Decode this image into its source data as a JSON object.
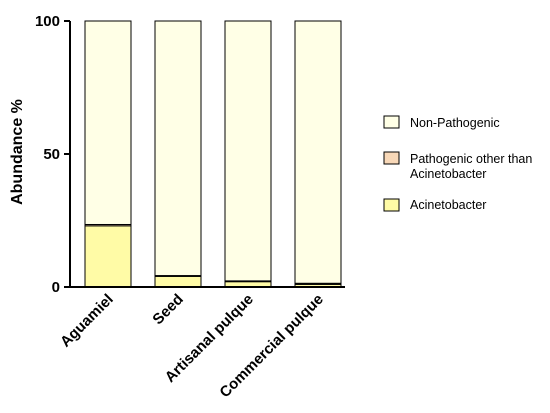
{
  "chart_data": {
    "type": "bar",
    "stacked": true,
    "categories": [
      "Aguamiel",
      "Seed",
      "Artisanal pulque",
      "Commercial pulque"
    ],
    "series": [
      {
        "name": "Acinetobacter",
        "values": [
          23,
          4,
          2,
          1
        ],
        "color": "#fffba6"
      },
      {
        "name": "Pathogenic other than Acinetobacter",
        "values": [
          0.5,
          0.3,
          0.3,
          0.4
        ],
        "color": "#f8d8b8"
      },
      {
        "name": "Non-Pathogenic",
        "values": [
          76.5,
          95.7,
          97.7,
          98.6
        ],
        "color": "#ffffe6"
      }
    ],
    "legend_order": [
      "Non-Pathogenic",
      "Pathogenic other than Acinetobacter",
      "Acinetobacter"
    ],
    "legend_text": {
      "non_pathogenic": "Non-Pathogenic",
      "pathogenic_line1": "Pathogenic other than",
      "pathogenic_line2": "Acinetobacter",
      "acinetobacter": "Acinetobacter"
    },
    "ylabel": "Abundance %",
    "xlabel": "",
    "ylim": [
      0,
      100
    ],
    "yticks": [
      0,
      50,
      100
    ],
    "grid": false,
    "legend_position": "right"
  }
}
